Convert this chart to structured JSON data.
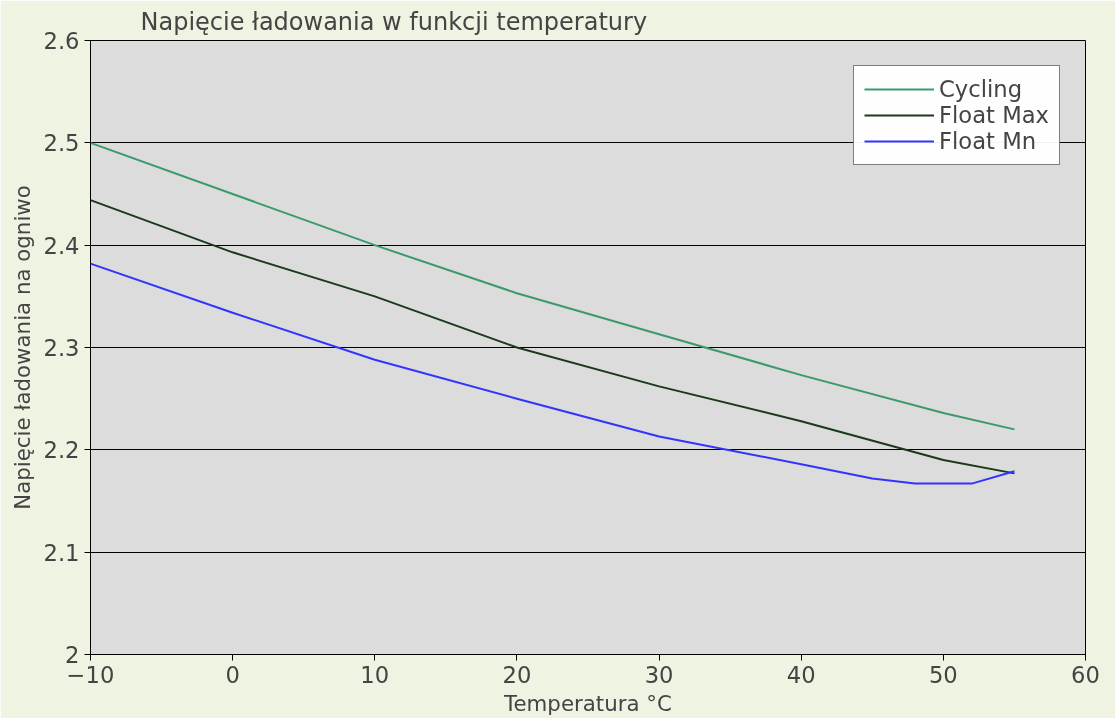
{
  "chart_data": {
    "type": "line",
    "title": "Napięcie ładowania w funkcji temperatury",
    "xlabel": "Temperatura °C",
    "ylabel": "Napięcie ładowania na ogniwo",
    "xlim": [
      -10,
      60
    ],
    "xticks": [
      -10,
      0,
      10,
      20,
      30,
      40,
      50,
      60
    ],
    "ylim": [
      2,
      2.6
    ],
    "yticks": [
      2,
      2.1,
      2.2,
      2.3,
      2.4,
      2.5,
      2.6
    ],
    "grid": "y",
    "legend": "top right",
    "line_style": "solid",
    "series": [
      {
        "name": "Cycling",
        "color": "#3a9a6a",
        "x": [
          -10,
          0,
          10,
          20,
          30,
          40,
          50,
          55
        ],
        "values": [
          2.5,
          2.45,
          2.4,
          2.353,
          2.313,
          2.273,
          2.236,
          2.22
        ]
      },
      {
        "name": "Float Max",
        "color": "#1a3a1a",
        "x": [
          -10,
          0,
          10,
          20,
          30,
          40,
          50,
          55
        ],
        "values": [
          2.444,
          2.393,
          2.35,
          2.3,
          2.262,
          2.228,
          2.19,
          2.177
        ]
      },
      {
        "name": "Float Mn",
        "color": "#3333ff",
        "x": [
          -10,
          0,
          10,
          20,
          30,
          40,
          45,
          48,
          52,
          55
        ],
        "values": [
          2.382,
          2.334,
          2.288,
          2.25,
          2.213,
          2.186,
          2.172,
          2.167,
          2.167,
          2.179
        ]
      }
    ]
  }
}
